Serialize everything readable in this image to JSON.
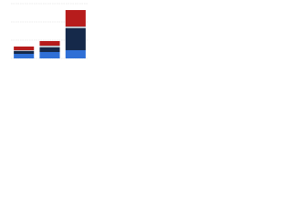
{
  "chart_data": {
    "type": "bar",
    "stacked": true,
    "categories": [
      null,
      null,
      null
    ],
    "series": [
      {
        "color": "#2f6fd6",
        "values": [
          5,
          7,
          9
        ]
      },
      {
        "color": "#15294a",
        "values": [
          3,
          5,
          24
        ]
      },
      {
        "color": "#b8bec7",
        "values": [
          1,
          2,
          2
        ]
      },
      {
        "color": "#b71c1c",
        "values": [
          4,
          5,
          18
        ]
      }
    ],
    "ylim": [
      0,
      60
    ],
    "yticks": [
      0,
      20,
      40,
      60
    ],
    "grid": true
  }
}
